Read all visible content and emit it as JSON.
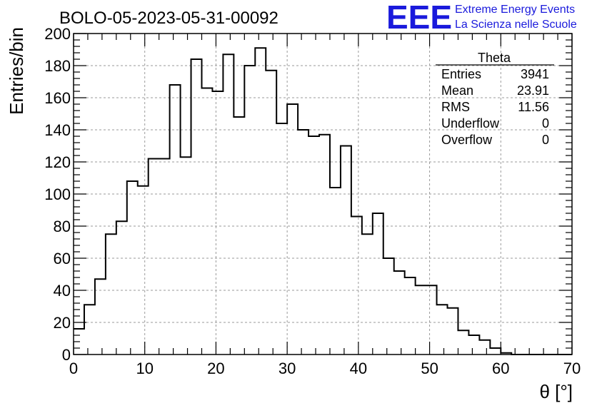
{
  "header": {
    "run_title": "BOLO-05-2023-05-31-00092",
    "logo": {
      "mark": "EEE",
      "line1": "Extreme Energy Events",
      "line2": "La Scienza nelle Scuole",
      "color": "#1a1adc"
    }
  },
  "stats_box": {
    "name": "Theta",
    "rows": [
      {
        "label": "Entries",
        "value": "3941"
      },
      {
        "label": "Mean",
        "value": "23.91"
      },
      {
        "label": "RMS",
        "value": "11.56"
      },
      {
        "label": "Underflow",
        "value": "0"
      },
      {
        "label": "Overflow",
        "value": "0"
      }
    ]
  },
  "chart_data": {
    "type": "bar",
    "style": "step-histogram",
    "xlabel": "θ [°]",
    "ylabel": "Entries/bin",
    "xlim": [
      0,
      70
    ],
    "ylim": [
      0,
      200
    ],
    "x_ticks": [
      0,
      10,
      20,
      30,
      40,
      50,
      60,
      70
    ],
    "y_ticks": [
      0,
      20,
      40,
      60,
      80,
      100,
      120,
      140,
      160,
      180,
      200
    ],
    "grid": true,
    "bin_width": 1.5,
    "bin_edges_start": 0,
    "values": [
      16,
      31,
      47,
      75,
      83,
      108,
      105,
      122,
      122,
      168,
      123,
      184,
      166,
      164,
      187,
      148,
      180,
      191,
      177,
      144,
      156,
      140,
      136,
      137,
      104,
      130,
      86,
      75,
      88,
      60,
      52,
      48,
      43,
      43,
      31,
      29,
      15,
      12,
      9,
      4,
      1,
      0,
      0,
      0,
      0,
      0,
      0
    ]
  }
}
